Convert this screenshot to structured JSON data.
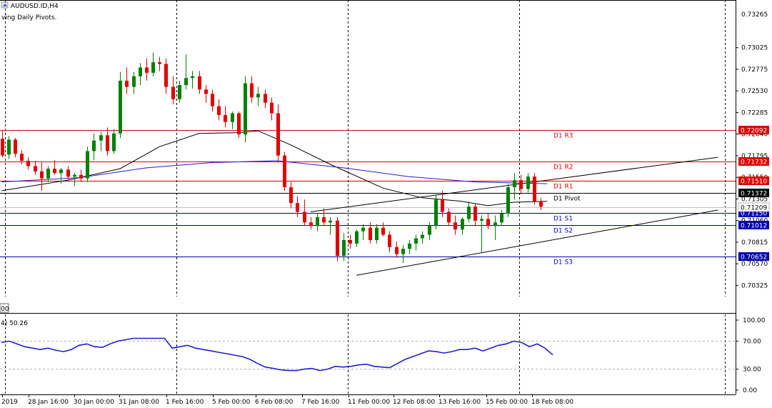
{
  "chart_data": {
    "type": "candlestick",
    "symbol_title": "AUDUSD.ID,H4",
    "indicator_caption": "ving Daily Pivots.",
    "price_axis": {
      "min": 0.7002,
      "max": 0.7355,
      "ticks": [
        "0.73025",
        "0.72775",
        "0.72530",
        "0.72285",
        "0.72040",
        "0.71795",
        "0.71550",
        "0.71305",
        "0.71060",
        "0.70815",
        "0.70570",
        "0.70325"
      ],
      "partial_top_label": "0.73265"
    },
    "time_axis": {
      "labels": [
        "2019",
        "28 Jan 16:00",
        "30 Jan 00:00",
        "31 Jan 08:00",
        "1 Feb 16:00",
        "5 Feb 00:00",
        "6 Feb 08:00",
        "7 Feb 16:00",
        "11 Feb 00:00",
        "12 Feb 08:00",
        "13 Feb 16:00",
        "15 Feb 00:00",
        "18 Feb 08:00"
      ]
    },
    "pivots": [
      {
        "name": "D1 R3",
        "value": 0.72092,
        "label": "0.72092",
        "kind": "resistance"
      },
      {
        "name": "D1 R2",
        "value": 0.71732,
        "label": "0.71732",
        "kind": "resistance"
      },
      {
        "name": "D1 R1",
        "value": 0.7151,
        "label": "0.71510",
        "kind": "resistance"
      },
      {
        "name": "D1 Pivot",
        "value": 0.71372,
        "label": "0.71372",
        "kind": "pivot"
      },
      {
        "name": "D1 S1",
        "value": 0.7115,
        "label": "0.71150",
        "kind": "support"
      },
      {
        "name": "D1 S2",
        "value": 0.71012,
        "label": "0.71012",
        "kind": "support"
      },
      {
        "name": "D1 S3",
        "value": 0.70652,
        "label": "0.70652",
        "kind": "support"
      }
    ],
    "current_price": {
      "value": 0.71209,
      "label": "0.71209"
    },
    "candles": [
      [
        0.7199,
        0.7209,
        0.7178,
        0.718
      ],
      [
        0.7181,
        0.7202,
        0.7176,
        0.7198
      ],
      [
        0.7198,
        0.72,
        0.7178,
        0.7182
      ],
      [
        0.7182,
        0.7186,
        0.717,
        0.7174
      ],
      [
        0.7174,
        0.7178,
        0.7164,
        0.7168
      ],
      [
        0.7168,
        0.7174,
        0.7158,
        0.7162
      ],
      [
        0.7162,
        0.7172,
        0.714,
        0.7154
      ],
      [
        0.7154,
        0.7168,
        0.715,
        0.7165
      ],
      [
        0.7165,
        0.7175,
        0.7158,
        0.716
      ],
      [
        0.716,
        0.7166,
        0.7148,
        0.7164
      ],
      [
        0.7164,
        0.7168,
        0.7152,
        0.7156
      ],
      [
        0.7156,
        0.716,
        0.7145,
        0.7158
      ],
      [
        0.7158,
        0.7164,
        0.715,
        0.7154
      ],
      [
        0.7154,
        0.719,
        0.715,
        0.7185
      ],
      [
        0.7185,
        0.7205,
        0.7175,
        0.7197
      ],
      [
        0.7197,
        0.7207,
        0.7185,
        0.7203
      ],
      [
        0.7203,
        0.7212,
        0.718,
        0.7185
      ],
      [
        0.7185,
        0.721,
        0.7182,
        0.7205
      ],
      [
        0.7205,
        0.7275,
        0.72,
        0.7265
      ],
      [
        0.7265,
        0.728,
        0.725,
        0.7258
      ],
      [
        0.7258,
        0.7275,
        0.725,
        0.727
      ],
      [
        0.727,
        0.7285,
        0.726,
        0.728
      ],
      [
        0.728,
        0.729,
        0.7265,
        0.7274
      ],
      [
        0.7274,
        0.7297,
        0.727,
        0.7286
      ],
      [
        0.7286,
        0.7292,
        0.7276,
        0.7284
      ],
      [
        0.7284,
        0.729,
        0.725,
        0.7258
      ],
      [
        0.7258,
        0.727,
        0.7238,
        0.7244
      ],
      [
        0.7244,
        0.7265,
        0.724,
        0.726
      ],
      [
        0.726,
        0.7295,
        0.7255,
        0.7268
      ],
      [
        0.7268,
        0.7276,
        0.7256,
        0.727
      ],
      [
        0.727,
        0.7276,
        0.725,
        0.7255
      ],
      [
        0.7255,
        0.726,
        0.724,
        0.725
      ],
      [
        0.725,
        0.7255,
        0.723,
        0.7236
      ],
      [
        0.7236,
        0.7244,
        0.722,
        0.7226
      ],
      [
        0.7226,
        0.7236,
        0.7212,
        0.7218
      ],
      [
        0.7218,
        0.723,
        0.721,
        0.7228
      ],
      [
        0.7228,
        0.723,
        0.72,
        0.7204
      ],
      [
        0.7204,
        0.727,
        0.7195,
        0.7262
      ],
      [
        0.7262,
        0.727,
        0.724,
        0.7246
      ],
      [
        0.7246,
        0.7258,
        0.7236,
        0.725
      ],
      [
        0.725,
        0.7255,
        0.7234,
        0.724
      ],
      [
        0.724,
        0.7246,
        0.722,
        0.7228
      ],
      [
        0.7228,
        0.7238,
        0.7172,
        0.718
      ],
      [
        0.718,
        0.7184,
        0.714,
        0.7144
      ],
      [
        0.7144,
        0.715,
        0.712,
        0.7126
      ],
      [
        0.7126,
        0.7134,
        0.711,
        0.7116
      ],
      [
        0.7116,
        0.713,
        0.71,
        0.7104
      ],
      [
        0.7104,
        0.711,
        0.7096,
        0.71
      ],
      [
        0.71,
        0.7114,
        0.7094,
        0.711
      ],
      [
        0.711,
        0.712,
        0.71,
        0.7104
      ],
      [
        0.7104,
        0.711,
        0.709,
        0.7106
      ],
      [
        0.7106,
        0.711,
        0.706,
        0.7066
      ],
      [
        0.7066,
        0.7092,
        0.706,
        0.7084
      ],
      [
        0.7084,
        0.709,
        0.7074,
        0.708
      ],
      [
        0.708,
        0.7096,
        0.7076,
        0.7094
      ],
      [
        0.7094,
        0.7102,
        0.7084,
        0.7098
      ],
      [
        0.7098,
        0.7104,
        0.708,
        0.7084
      ],
      [
        0.7084,
        0.7102,
        0.708,
        0.7098
      ],
      [
        0.7098,
        0.7104,
        0.7088,
        0.709
      ],
      [
        0.709,
        0.7094,
        0.707,
        0.7076
      ],
      [
        0.7076,
        0.7082,
        0.7064,
        0.7068
      ],
      [
        0.7068,
        0.7078,
        0.7058,
        0.7074
      ],
      [
        0.7074,
        0.7084,
        0.7068,
        0.708
      ],
      [
        0.708,
        0.709,
        0.7072,
        0.7086
      ],
      [
        0.7086,
        0.7094,
        0.708,
        0.709
      ],
      [
        0.709,
        0.7104,
        0.7084,
        0.71
      ],
      [
        0.71,
        0.7136,
        0.7096,
        0.713
      ],
      [
        0.713,
        0.714,
        0.711,
        0.7116
      ],
      [
        0.7116,
        0.712,
        0.71,
        0.7104
      ],
      [
        0.7104,
        0.7112,
        0.709,
        0.7096
      ],
      [
        0.7096,
        0.711,
        0.709,
        0.7108
      ],
      [
        0.7108,
        0.7128,
        0.7104,
        0.7122
      ],
      [
        0.7122,
        0.7126,
        0.71,
        0.7106
      ],
      [
        0.7106,
        0.7112,
        0.707,
        0.7108
      ],
      [
        0.7108,
        0.7114,
        0.7096,
        0.71
      ],
      [
        0.71,
        0.7112,
        0.7084,
        0.7104
      ],
      [
        0.7104,
        0.7118,
        0.71,
        0.7114
      ],
      [
        0.7114,
        0.7148,
        0.711,
        0.7144
      ],
      [
        0.7144,
        0.716,
        0.713,
        0.7152
      ],
      [
        0.7152,
        0.7158,
        0.7136,
        0.7142
      ],
      [
        0.7142,
        0.716,
        0.7138,
        0.7156
      ],
      [
        0.7156,
        0.716,
        0.7124,
        0.7128
      ],
      [
        0.7128,
        0.7132,
        0.7118,
        0.7122
      ]
    ],
    "moving_averages": [
      {
        "color": "#000000",
        "values": [
          [
            0,
            0.714
          ],
          [
            10,
            0.7152
          ],
          [
            18,
            0.7165
          ],
          [
            24,
            0.719
          ],
          [
            30,
            0.7205
          ],
          [
            36,
            0.7206
          ],
          [
            39,
            0.7208
          ],
          [
            44,
            0.7192
          ],
          [
            50,
            0.717
          ],
          [
            58,
            0.7143
          ],
          [
            64,
            0.7132
          ],
          [
            70,
            0.7128
          ],
          [
            74,
            0.7123
          ],
          [
            78,
            0.7127
          ],
          [
            83,
            0.7128
          ]
        ]
      },
      {
        "color": "#1f1fd0",
        "values": [
          [
            0,
            0.715
          ],
          [
            12,
            0.7155
          ],
          [
            22,
            0.7166
          ],
          [
            32,
            0.7172
          ],
          [
            42,
            0.7174
          ],
          [
            52,
            0.7166
          ],
          [
            62,
            0.7156
          ],
          [
            72,
            0.715
          ],
          [
            83,
            0.7148
          ]
        ]
      }
    ],
    "trendlines": [
      {
        "from": [
          47,
          0.7116
        ],
        "to": [
          109,
          0.7178
        ]
      },
      {
        "from": [
          54,
          0.7044
        ],
        "to": [
          109,
          0.7118
        ]
      }
    ],
    "oscillator": {
      "caption": "4) 50.26",
      "ticks": [
        "100.00",
        "70.00",
        "30.00",
        "0.00"
      ],
      "levels": [
        70,
        30
      ],
      "color": "#1f1fd0",
      "values": [
        68,
        70,
        66,
        62,
        60,
        58,
        60,
        57,
        55,
        58,
        64,
        66,
        62,
        61,
        66,
        70,
        72,
        74,
        74,
        74,
        74,
        74,
        60,
        62,
        64,
        60,
        58,
        56,
        54,
        52,
        50,
        48,
        44,
        38,
        33,
        31,
        29,
        28,
        28,
        30,
        31,
        28,
        30,
        34,
        33,
        34,
        36,
        37,
        34,
        33,
        32,
        38,
        44,
        48,
        52,
        56,
        55,
        53,
        55,
        58,
        58,
        60,
        56,
        60,
        64,
        66,
        70,
        68,
        62,
        66,
        60,
        50.26
      ]
    },
    "left_edge_labels": {
      "panel_partial": "00"
    }
  }
}
